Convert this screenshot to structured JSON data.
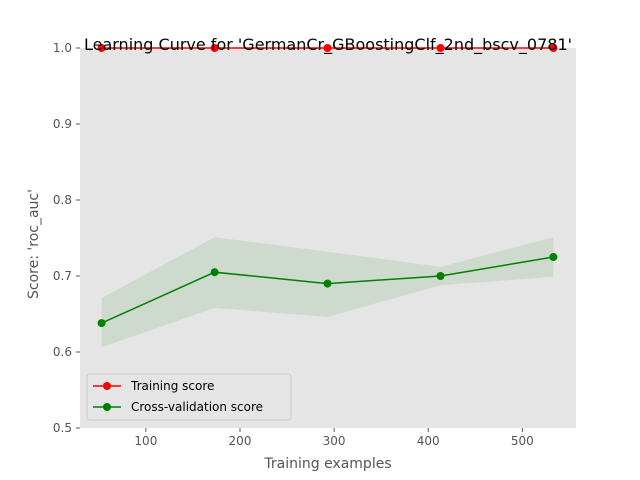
{
  "chart_data": {
    "type": "line",
    "title": "Learning Curve for 'GermanCr_GBoostingClf_2nd_bscv_0781'",
    "xlabel": "Training examples",
    "ylabel": "Score: 'roc_auc'",
    "xlim": [
      30,
      557
    ],
    "ylim": [
      0.5,
      1.0
    ],
    "xticks": [
      100,
      200,
      300,
      400,
      500
    ],
    "yticks": [
      0.5,
      0.6,
      0.7,
      0.8,
      0.9,
      1.0
    ],
    "x": [
      53,
      173,
      293,
      413,
      533
    ],
    "grid": false,
    "legend_position": "lower-left",
    "background": "#e5e5e5",
    "series": [
      {
        "name": "Training score",
        "color": "#ff0000",
        "values": [
          1.0,
          1.0,
          1.0,
          1.0,
          1.0
        ],
        "band_lower": [
          1.0,
          1.0,
          1.0,
          1.0,
          1.0
        ],
        "band_upper": [
          1.0,
          1.0,
          1.0,
          1.0,
          1.0
        ]
      },
      {
        "name": "Cross-validation score",
        "color": "#008000",
        "values": [
          0.638,
          0.705,
          0.69,
          0.7,
          0.725
        ],
        "band_lower": [
          0.606,
          0.658,
          0.646,
          0.688,
          0.699
        ],
        "band_upper": [
          0.671,
          0.751,
          0.732,
          0.712,
          0.751
        ]
      }
    ]
  }
}
